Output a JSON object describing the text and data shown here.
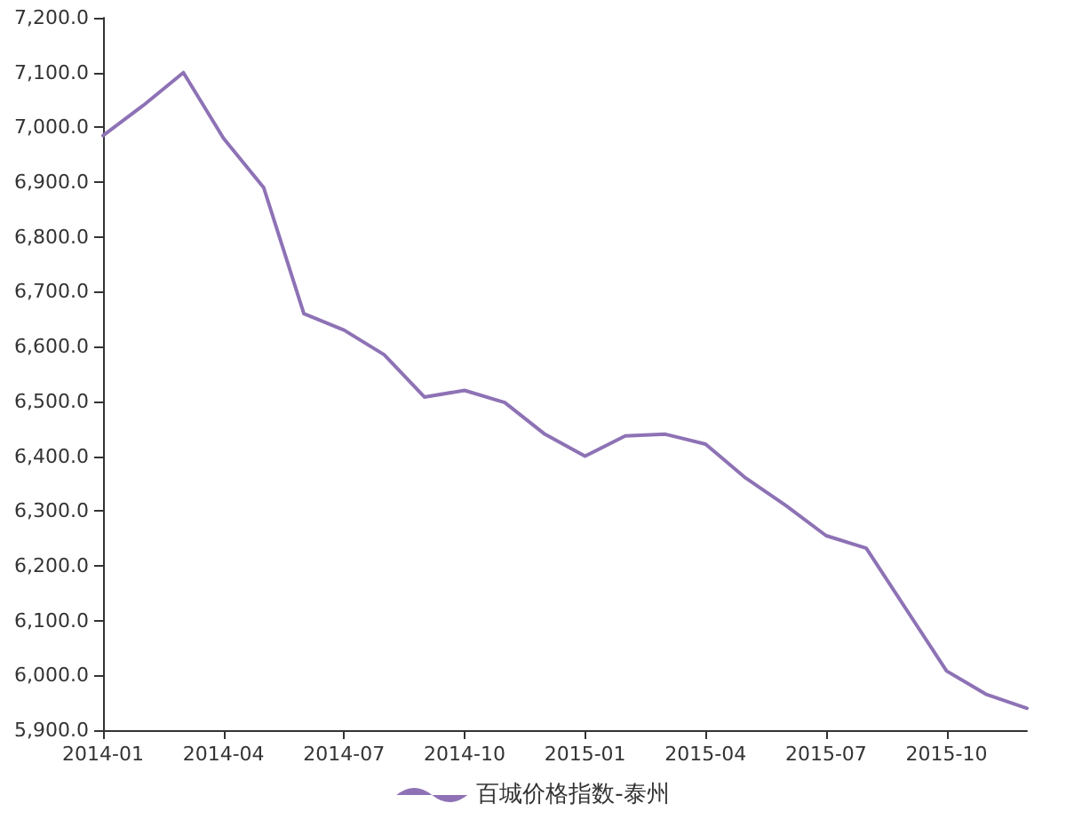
{
  "chart_data": {
    "type": "line",
    "categories": [
      "2014-01",
      null,
      null,
      "2014-04",
      null,
      null,
      "2014-07",
      null,
      null,
      "2014-10",
      null,
      null,
      "2015-01",
      null,
      null,
      "2015-04",
      null,
      null,
      "2015-07",
      null,
      null,
      "2015-10",
      null,
      null
    ],
    "series": [
      {
        "name": "百城价格指数-泰州",
        "color": "#8e72b5",
        "values": [
          6985,
          7040,
          7100,
          6980,
          6890,
          6660,
          6630,
          6585,
          6508,
          6520,
          6498,
          6440,
          6400,
          6437,
          6440,
          6422,
          6360,
          6310,
          6255,
          6232,
          6120,
          6008,
          5965,
          5940
        ]
      }
    ],
    "ylim": [
      5900,
      7200
    ],
    "yticks": [
      {
        "value": 5900,
        "label": "5,900.0"
      },
      {
        "value": 6000,
        "label": "6,000.0"
      },
      {
        "value": 6100,
        "label": "6,100.0"
      },
      {
        "value": 6200,
        "label": "6,200.0"
      },
      {
        "value": 6300,
        "label": "6,300.0"
      },
      {
        "value": 6400,
        "label": "6,400.0"
      },
      {
        "value": 6500,
        "label": "6,500.0"
      },
      {
        "value": 6600,
        "label": "6,600.0"
      },
      {
        "value": 6700,
        "label": "6,700.0"
      },
      {
        "value": 6800,
        "label": "6,800.0"
      },
      {
        "value": 6900,
        "label": "6,900.0"
      },
      {
        "value": 7000,
        "label": "7,000.0"
      },
      {
        "value": 7100,
        "label": "7,100.0"
      },
      {
        "value": 7200,
        "label": "7,200.0"
      }
    ],
    "grid": false,
    "legend": "bottom",
    "marker": "none",
    "line_style": "solid"
  }
}
